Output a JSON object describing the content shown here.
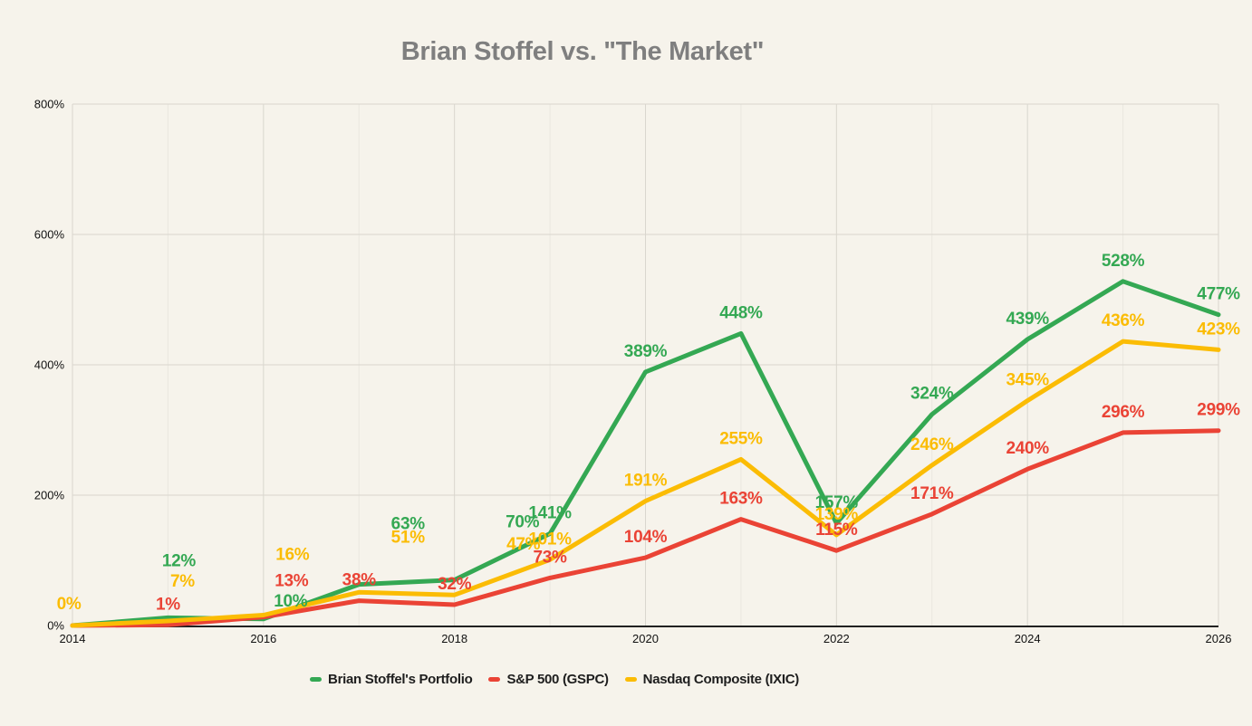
{
  "title": {
    "text": "Brian Stoffel vs. \"The Market\"",
    "color": "#7F7F7F"
  },
  "chart_data": {
    "type": "line",
    "title": "Brian Stoffel vs. \"The Market\"",
    "xlabel": "",
    "ylabel": "",
    "x": [
      2014,
      2015,
      2016,
      2017,
      2018,
      2019,
      2020,
      2021,
      2022,
      2023,
      2024,
      2025,
      2026
    ],
    "x_ticks": [
      2014,
      2016,
      2018,
      2020,
      2022,
      2024,
      2026
    ],
    "x_tick_labels": [
      "2014",
      "2016",
      "2018",
      "2020",
      "2022",
      "2024",
      "2026"
    ],
    "ylim": [
      0,
      800
    ],
    "y_ticks": [
      0,
      200,
      400,
      600,
      800
    ],
    "y_tick_labels": [
      "0%",
      "200%",
      "400%",
      "600%",
      "800%"
    ],
    "grid": true,
    "legend_position": "bottom",
    "background_color": "#F6F3EB",
    "axis_color": "#212121",
    "tick_label_color": "#111111",
    "gridline_color": "#D9D6CE",
    "minor_gridline_color": "#EAE7DF",
    "series": [
      {
        "name": "Brian Stoffel's Portfolio",
        "color": "#34A853",
        "values": [
          0,
          12,
          10,
          63,
          70,
          141,
          389,
          448,
          157,
          324,
          439,
          528,
          477
        ],
        "labels": [
          null,
          "12%",
          "10%",
          "63%",
          "70%",
          "141%",
          "389%",
          "448%",
          "157%",
          "324%",
          "439%",
          "528%",
          "477%"
        ],
        "label_offsets": {
          "2015": [
            12,
            -64
          ],
          "2016": [
            30,
            -21
          ],
          "2017": [
            54,
            -68
          ],
          "2018": [
            75,
            -65
          ]
        }
      },
      {
        "name": "S&P 500 (GSPC)",
        "color": "#EA4335",
        "values": [
          0,
          1,
          13,
          38,
          32,
          73,
          104,
          163,
          115,
          171,
          240,
          296,
          299
        ],
        "labels": [
          null,
          "1%",
          "13%",
          "38%",
          "32%",
          "73%",
          "104%",
          "163%",
          "115%",
          "171%",
          "240%",
          "296%",
          "299%"
        ],
        "label_offsets": {
          "2016": [
            31,
            -41
          ]
        }
      },
      {
        "name": "Nasdaq Composite (IXIC)",
        "color": "#FBBC04",
        "values": [
          0,
          7,
          16,
          51,
          47,
          101,
          191,
          255,
          139,
          246,
          345,
          436,
          423
        ],
        "labels": [
          "0%",
          "7%",
          "16%",
          "51%",
          "47%",
          "101%",
          "191%",
          "255%",
          "139%",
          "246%",
          "345%",
          "436%",
          "423%"
        ],
        "label_offsets": {
          "2014": [
            -4,
            -25
          ],
          "2015": [
            16,
            -45
          ],
          "2016": [
            32,
            -68
          ],
          "2017": [
            54,
            -62
          ],
          "2018": [
            76,
            -57
          ]
        }
      }
    ]
  },
  "legend": {
    "entries": [
      {
        "label": "Brian Stoffel's Portfolio",
        "color": "#34A853"
      },
      {
        "label": "S&P 500 (GSPC)",
        "color": "#EA4335"
      },
      {
        "label": "Nasdaq Composite (IXIC)",
        "color": "#FBBC04"
      }
    ]
  }
}
